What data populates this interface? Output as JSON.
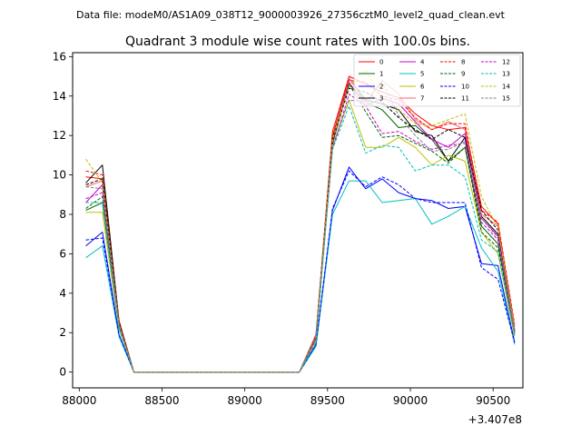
{
  "chart_data": {
    "type": "line",
    "suptitle": "Data file: modeM0/AS1A09_038T12_9000003926_27356cztM0_level2_quad_clean.evt",
    "title": "Quadrant 3 module wise count rates with 100.0s bins.",
    "xlabel": "",
    "ylabel": "",
    "x_offset_label": "+3.407e8",
    "xlim": [
      87960,
      90680
    ],
    "ylim": [
      -0.8,
      16.2
    ],
    "x_ticks": [
      88000,
      88500,
      89000,
      89500,
      90000,
      90500
    ],
    "y_ticks": [
      0,
      2,
      4,
      6,
      8,
      10,
      12,
      14,
      16
    ],
    "legend_position": "top-right",
    "x": [
      88040,
      88140,
      88240,
      88330,
      88430,
      88530,
      88630,
      88730,
      88830,
      88930,
      89030,
      89130,
      89230,
      89330,
      89430,
      89530,
      89630,
      89730,
      89830,
      89930,
      90030,
      90130,
      90230,
      90330,
      90430,
      90530,
      90630
    ],
    "series": [
      {
        "name": "0",
        "color": "#ff0000",
        "dash": false,
        "values": [
          9.9,
          9.8,
          2.5,
          0,
          0,
          0,
          0,
          0,
          0,
          0,
          0,
          0,
          0,
          0,
          1.8,
          12.2,
          15.0,
          14.6,
          14.2,
          13.9,
          13.1,
          12.5,
          12.3,
          12.4,
          8.4,
          7.5,
          2.3
        ]
      },
      {
        "name": "1",
        "color": "#006400",
        "dash": false,
        "values": [
          8.2,
          8.6,
          2.3,
          0,
          0,
          0,
          0,
          0,
          0,
          0,
          0,
          0,
          0,
          0,
          1.7,
          11.6,
          14.6,
          13.7,
          13.3,
          12.4,
          12.5,
          11.8,
          10.7,
          11.4,
          7.4,
          6.5,
          1.9
        ]
      },
      {
        "name": "2",
        "color": "#0000ff",
        "dash": false,
        "values": [
          6.4,
          7.1,
          1.9,
          0,
          0,
          0,
          0,
          0,
          0,
          0,
          0,
          0,
          0,
          0,
          1.4,
          8.2,
          10.4,
          9.3,
          9.8,
          9.1,
          8.8,
          8.7,
          8.3,
          8.4,
          5.5,
          5.4,
          1.5
        ]
      },
      {
        "name": "3",
        "color": "#000000",
        "dash": false,
        "values": [
          9.6,
          10.5,
          2.6,
          0,
          0,
          0,
          0,
          0,
          0,
          0,
          0,
          0,
          0,
          0,
          1.9,
          11.9,
          14.9,
          13.8,
          13.6,
          13.3,
          12.2,
          12.0,
          10.7,
          11.9,
          7.9,
          7.0,
          2.0
        ]
      },
      {
        "name": "4",
        "color": "#cc00cc",
        "dash": false,
        "values": [
          8.6,
          9.5,
          2.4,
          0,
          0,
          0,
          0,
          0,
          0,
          0,
          0,
          0,
          0,
          0,
          1.7,
          11.6,
          14.7,
          13.5,
          13.9,
          13.6,
          12.7,
          11.8,
          11.4,
          12.1,
          7.8,
          6.9,
          2.1
        ]
      },
      {
        "name": "5",
        "color": "#00bfbf",
        "dash": false,
        "values": [
          5.8,
          6.4,
          1.8,
          0,
          0,
          0,
          0,
          0,
          0,
          0,
          0,
          0,
          0,
          0,
          1.3,
          8.0,
          9.7,
          9.7,
          8.6,
          8.7,
          8.8,
          7.5,
          7.9,
          8.4,
          6.3,
          5.1,
          1.4
        ]
      },
      {
        "name": "6",
        "color": "#bfbf00",
        "dash": false,
        "values": [
          8.1,
          8.1,
          2.2,
          0,
          0,
          0,
          0,
          0,
          0,
          0,
          0,
          0,
          0,
          0,
          1.6,
          11.4,
          13.8,
          11.4,
          11.4,
          11.9,
          11.4,
          10.5,
          11.0,
          10.7,
          7.1,
          6.0,
          1.8
        ]
      },
      {
        "name": "7",
        "color": "#ff6666",
        "dash": false,
        "values": [
          9.4,
          9.7,
          2.5,
          0,
          0,
          0,
          0,
          0,
          0,
          0,
          0,
          0,
          0,
          0,
          1.9,
          11.8,
          14.9,
          13.7,
          14.8,
          14.1,
          12.8,
          12.3,
          12.7,
          12.3,
          8.0,
          7.4,
          2.3
        ]
      },
      {
        "name": "8",
        "color": "#ff0000",
        "dash": true,
        "values": [
          10.2,
          10.0,
          2.6,
          0,
          0,
          0,
          0,
          0,
          0,
          0,
          0,
          0,
          0,
          0,
          1.9,
          12.0,
          14.8,
          14.7,
          14.0,
          13.8,
          12.9,
          12.3,
          12.6,
          12.6,
          8.2,
          7.6,
          2.4
        ]
      },
      {
        "name": "9",
        "color": "#006400",
        "dash": true,
        "values": [
          8.3,
          8.9,
          2.3,
          0,
          0,
          0,
          0,
          0,
          0,
          0,
          0,
          0,
          0,
          0,
          1.7,
          11.6,
          14.6,
          13.2,
          11.9,
          12.0,
          11.6,
          11.2,
          10.6,
          11.4,
          7.1,
          6.3,
          1.9
        ]
      },
      {
        "name": "10",
        "color": "#0000ff",
        "dash": true,
        "values": [
          6.7,
          6.8,
          1.9,
          0,
          0,
          0,
          0,
          0,
          0,
          0,
          0,
          0,
          0,
          0,
          1.4,
          8.3,
          10.2,
          9.4,
          9.9,
          9.5,
          8.8,
          8.6,
          8.6,
          8.6,
          5.3,
          4.7,
          1.5
        ]
      },
      {
        "name": "11",
        "color": "#000000",
        "dash": true,
        "values": [
          9.5,
          9.8,
          2.5,
          0,
          0,
          0,
          0,
          0,
          0,
          0,
          0,
          0,
          0,
          0,
          1.8,
          11.8,
          14.4,
          14.2,
          13.7,
          12.9,
          12.3,
          11.8,
          12.3,
          11.9,
          8.2,
          7.2,
          2.1
        ]
      },
      {
        "name": "12",
        "color": "#cc00cc",
        "dash": true,
        "values": [
          8.8,
          9.1,
          2.4,
          0,
          0,
          0,
          0,
          0,
          0,
          0,
          0,
          0,
          0,
          0,
          1.7,
          11.3,
          14.1,
          13.5,
          12.1,
          12.2,
          11.7,
          11.3,
          11.5,
          11.6,
          7.6,
          6.7,
          2.0
        ]
      },
      {
        "name": "13",
        "color": "#00bfbf",
        "dash": true,
        "values": [
          8.6,
          8.6,
          2.2,
          0,
          0,
          0,
          0,
          0,
          0,
          0,
          0,
          0,
          0,
          0,
          1.5,
          11.3,
          13.5,
          11.1,
          11.5,
          11.4,
          10.2,
          10.5,
          10.5,
          9.9,
          6.7,
          6.1,
          1.9
        ]
      },
      {
        "name": "14",
        "color": "#bfbf00",
        "dash": true,
        "values": [
          10.8,
          9.6,
          2.4,
          0,
          0,
          0,
          0,
          0,
          0,
          0,
          0,
          0,
          0,
          0,
          1.8,
          11.8,
          14.5,
          15.3,
          13.9,
          13.3,
          12.6,
          12.5,
          12.8,
          13.1,
          8.9,
          7.3,
          2.2
        ]
      },
      {
        "name": "15",
        "color": "#808080",
        "dash": true,
        "values": [
          9.4,
          9.3,
          2.4,
          0,
          0,
          0,
          0,
          0,
          0,
          0,
          0,
          0,
          0,
          0,
          1.8,
          11.5,
          13.8,
          13.7,
          14.7,
          13.0,
          12.0,
          11.2,
          11.3,
          11.7,
          7.8,
          6.8,
          2.1
        ]
      }
    ]
  }
}
